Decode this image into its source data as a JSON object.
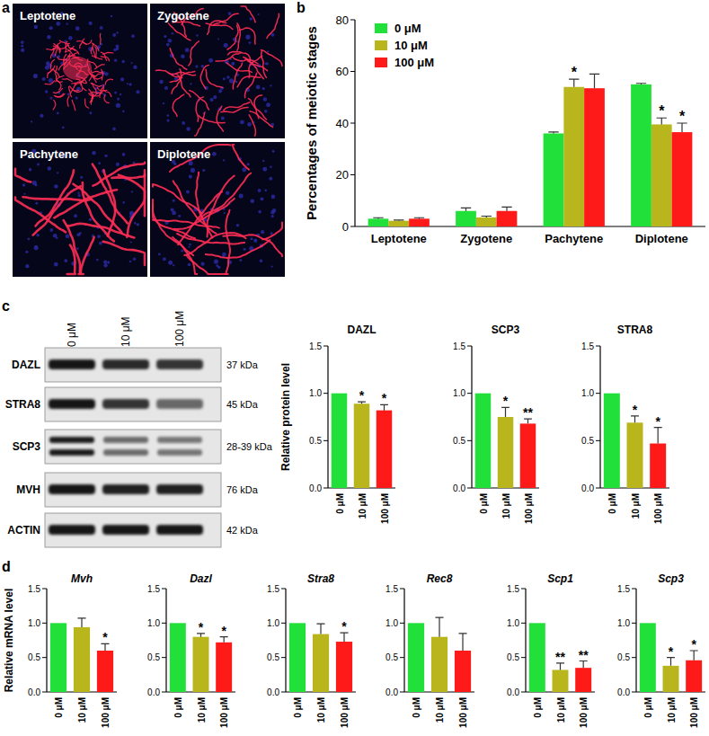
{
  "panel_labels": [
    "a",
    "b",
    "c",
    "d"
  ],
  "micrographs": [
    "Leptotene",
    "Zygotene",
    "Pachytene",
    "Diplotene"
  ],
  "blot": {
    "lanes": [
      "0 μM",
      "10 μM",
      "100 μM"
    ],
    "rows": [
      {
        "protein": "DAZL",
        "size": "37 kDa"
      },
      {
        "protein": "STRA8",
        "size": "45 kDa"
      },
      {
        "protein": "SCP3",
        "size": "28-39 kDa"
      },
      {
        "protein": "MVH",
        "size": "76 kDa"
      },
      {
        "protein": "ACTIN",
        "size": "42 kDa"
      }
    ]
  },
  "chart_data": [
    {
      "type": "bar",
      "y_label": "Percentages of meiotic stages",
      "categories": [
        "Leptotene",
        "Zygotene",
        "Pachytene",
        "Diplotene"
      ],
      "series": [
        {
          "name": "0 μM",
          "color": "#22e03a",
          "values": [
            3,
            6,
            36,
            55
          ],
          "errors": [
            0.4,
            1.2,
            0.6,
            0.4
          ]
        },
        {
          "name": "10 μM",
          "color": "#b9b51c",
          "values": [
            2.2,
            3.5,
            54,
            39.5
          ],
          "errors": [
            0.3,
            0.5,
            3,
            2.5
          ],
          "annotations": [
            null,
            null,
            "*",
            "*"
          ]
        },
        {
          "name": "100 μM",
          "color": "#ff1a1a",
          "values": [
            3,
            6,
            53.5,
            36.5
          ],
          "errors": [
            0.4,
            1.5,
            5.5,
            3.5
          ],
          "annotations": [
            null,
            null,
            null,
            "*"
          ]
        }
      ],
      "ylim": [
        0,
        80
      ],
      "yticks": [
        0,
        20,
        40,
        60,
        80
      ],
      "legend": "upper left"
    },
    {
      "type": "bar",
      "title": "DAZL",
      "y_label": "Relative protein level",
      "categories": [
        "0 μM",
        "10 μM",
        "100 μM"
      ],
      "values": [
        1,
        0.89,
        0.82
      ],
      "errors": [
        null,
        0.02,
        0.06
      ],
      "annotations": [
        null,
        "*",
        "*"
      ],
      "colors": [
        "#22e03a",
        "#b9b51c",
        "#ff1a1a"
      ],
      "ylim": [
        0,
        1.5
      ],
      "yticks": [
        {
          "value": 0,
          "label": "0.0"
        },
        {
          "value": 0.5,
          "label": "0.5"
        },
        {
          "value": 1,
          "label": "1.0"
        },
        {
          "value": 1.5,
          "label": "1.5"
        }
      ]
    },
    {
      "type": "bar",
      "title": "SCP3",
      "categories": [
        "0 μM",
        "10 μM",
        "100 μM"
      ],
      "values": [
        1,
        0.75,
        0.68
      ],
      "errors": [
        null,
        0.1,
        0.05
      ],
      "annotations": [
        null,
        "*",
        "**"
      ],
      "colors": [
        "#22e03a",
        "#b9b51c",
        "#ff1a1a"
      ],
      "ylim": [
        0,
        1.5
      ],
      "yticks": [
        {
          "value": 0,
          "label": "0.0"
        },
        {
          "value": 0.5,
          "label": "0.5"
        },
        {
          "value": 1,
          "label": "1.0"
        },
        {
          "value": 1.5,
          "label": "1.5"
        }
      ]
    },
    {
      "type": "bar",
      "title": "STRA8",
      "categories": [
        "0 μM",
        "10 μM",
        "100 μM"
      ],
      "values": [
        1,
        0.69,
        0.47
      ],
      "errors": [
        null,
        0.07,
        0.17
      ],
      "annotations": [
        null,
        "*",
        "*"
      ],
      "colors": [
        "#22e03a",
        "#b9b51c",
        "#ff1a1a"
      ],
      "ylim": [
        0,
        1.5
      ],
      "yticks": [
        {
          "value": 0,
          "label": "0.0"
        },
        {
          "value": 0.5,
          "label": "0.5"
        },
        {
          "value": 1,
          "label": "1.0"
        },
        {
          "value": 1.5,
          "label": "1.5"
        }
      ]
    },
    {
      "type": "bar",
      "title": "Mvh",
      "y_label": "Relative mRNA level",
      "categories": [
        "0 μM",
        "10 μM",
        "100 μM"
      ],
      "values": [
        1,
        0.94,
        0.6
      ],
      "errors": [
        null,
        0.13,
        0.1
      ],
      "annotations": [
        null,
        null,
        "*"
      ],
      "colors": [
        "#22e03a",
        "#b9b51c",
        "#ff1a1a"
      ],
      "ylim": [
        0,
        1.5
      ],
      "yticks": [
        {
          "value": 0,
          "label": "0.0"
        },
        {
          "value": 0.5,
          "label": "0.5"
        },
        {
          "value": 1,
          "label": "1.0"
        },
        {
          "value": 1.5,
          "label": "1.5"
        }
      ]
    },
    {
      "type": "bar",
      "title": "Dazl",
      "categories": [
        "0 μM",
        "10 μM",
        "100 μM"
      ],
      "values": [
        1,
        0.8,
        0.72
      ],
      "errors": [
        null,
        0.05,
        0.08
      ],
      "annotations": [
        null,
        "*",
        "*"
      ],
      "colors": [
        "#22e03a",
        "#b9b51c",
        "#ff1a1a"
      ],
      "ylim": [
        0,
        1.5
      ],
      "yticks": [
        {
          "value": 0,
          "label": "0.0"
        },
        {
          "value": 0.5,
          "label": "0.5"
        },
        {
          "value": 1,
          "label": "1.0"
        },
        {
          "value": 1.5,
          "label": "1.5"
        }
      ]
    },
    {
      "type": "bar",
      "title": "Stra8",
      "categories": [
        "0 μM",
        "10 μM",
        "100 μM"
      ],
      "values": [
        1,
        0.84,
        0.73
      ],
      "errors": [
        null,
        0.15,
        0.13
      ],
      "annotations": [
        null,
        null,
        "*"
      ],
      "colors": [
        "#22e03a",
        "#b9b51c",
        "#ff1a1a"
      ],
      "ylim": [
        0,
        1.5
      ],
      "yticks": [
        {
          "value": 0,
          "label": "0.0"
        },
        {
          "value": 0.5,
          "label": "0.5"
        },
        {
          "value": 1,
          "label": "1.0"
        },
        {
          "value": 1.5,
          "label": "1.5"
        }
      ]
    },
    {
      "type": "bar",
      "title": "Rec8",
      "categories": [
        "0 μM",
        "10 μM",
        "100 μM"
      ],
      "values": [
        1,
        0.8,
        0.6
      ],
      "errors": [
        null,
        0.28,
        0.25
      ],
      "colors": [
        "#22e03a",
        "#b9b51c",
        "#ff1a1a"
      ],
      "ylim": [
        0,
        1.5
      ],
      "yticks": [
        {
          "value": 0,
          "label": "0.0"
        },
        {
          "value": 0.5,
          "label": "0.5"
        },
        {
          "value": 1,
          "label": "1.0"
        },
        {
          "value": 1.5,
          "label": "1.5"
        }
      ]
    },
    {
      "type": "bar",
      "title": "Scp1",
      "categories": [
        "0 μM",
        "10 μM",
        "100 μM"
      ],
      "values": [
        1,
        0.32,
        0.35
      ],
      "errors": [
        null,
        0.1,
        0.1
      ],
      "annotations": [
        null,
        "**",
        "**"
      ],
      "colors": [
        "#22e03a",
        "#b9b51c",
        "#ff1a1a"
      ],
      "ylim": [
        0,
        1.5
      ],
      "yticks": [
        {
          "value": 0,
          "label": "0.0"
        },
        {
          "value": 0.5,
          "label": "0.5"
        },
        {
          "value": 1,
          "label": "1.0"
        },
        {
          "value": 1.5,
          "label": "1.5"
        }
      ]
    },
    {
      "type": "bar",
      "title": "Scp3",
      "categories": [
        "0 μM",
        "10 μM",
        "100 μM"
      ],
      "values": [
        1,
        0.38,
        0.46
      ],
      "errors": [
        null,
        0.12,
        0.14
      ],
      "annotations": [
        null,
        "*",
        "*"
      ],
      "colors": [
        "#22e03a",
        "#b9b51c",
        "#ff1a1a"
      ],
      "ylim": [
        0,
        1.5
      ],
      "yticks": [
        {
          "value": 0,
          "label": "0.0"
        },
        {
          "value": 0.5,
          "label": "0.5"
        },
        {
          "value": 1,
          "label": "1.0"
        },
        {
          "value": 1.5,
          "label": "1.5"
        }
      ]
    }
  ]
}
